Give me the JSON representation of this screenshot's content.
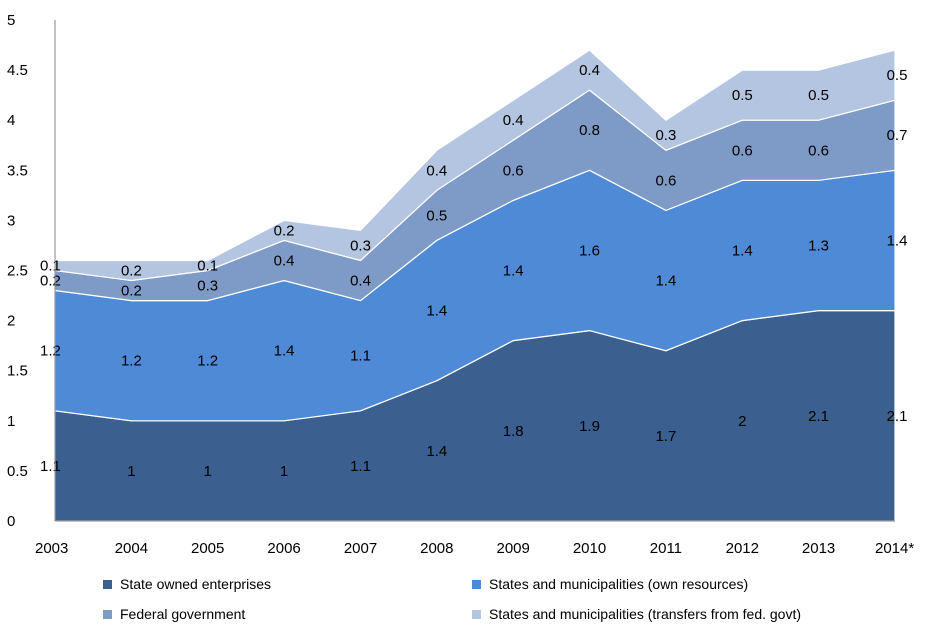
{
  "chart_data": {
    "type": "area",
    "stacked": true,
    "x": [
      "2003",
      "2004",
      "2005",
      "2006",
      "2007",
      "2008",
      "2009",
      "2010",
      "2011",
      "2012",
      "2013",
      "2014*"
    ],
    "ylim": [
      0,
      5
    ],
    "yticks": [
      "0",
      "0.5",
      "1",
      "1.5",
      "2",
      "2.5",
      "3",
      "3.5",
      "4",
      "4.5",
      "5"
    ],
    "legend_position": "bottom",
    "grid": false,
    "series": [
      {
        "name": "State owned enterprises",
        "color": "#3B5F8F",
        "values": [
          1.1,
          1,
          1,
          1,
          1.1,
          1.4,
          1.8,
          1.9,
          1.7,
          2,
          2.1,
          2.1
        ],
        "labels": [
          "1.1",
          "1",
          "1",
          "1",
          "1.1",
          "1.4",
          "1.8",
          "1.9",
          "1.7",
          "2",
          "2.1",
          "2.1"
        ]
      },
      {
        "name": "States and municipalities (own resources)",
        "color": "#4F8AD6",
        "values": [
          1.2,
          1.2,
          1.2,
          1.4,
          1.1,
          1.4,
          1.4,
          1.6,
          1.4,
          1.4,
          1.3,
          1.4
        ],
        "labels": [
          "1.2",
          "1.2",
          "1.2",
          "1.4",
          "1.1",
          "1.4",
          "1.4",
          "1.6",
          "1.4",
          "1.4",
          "1.3",
          "1.4"
        ]
      },
      {
        "name": "Federal government",
        "color": "#7E9BC8",
        "values": [
          0.2,
          0.2,
          0.3,
          0.4,
          0.4,
          0.5,
          0.6,
          0.8,
          0.6,
          0.6,
          0.6,
          0.7
        ],
        "labels": [
          "0.2",
          "0.2",
          "0.3",
          "0.4",
          "0.4",
          "0.5",
          "0.6",
          "0.8",
          "0.6",
          "0.6",
          "0.6",
          "0.7"
        ]
      },
      {
        "name": "States and municipalities (transfers from fed. govt)",
        "color": "#B4C5E1",
        "values": [
          0.1,
          0.2,
          0.1,
          0.2,
          0.3,
          0.4,
          0.4,
          0.4,
          0.3,
          0.5,
          0.5,
          0.5
        ],
        "labels": [
          "0.1",
          "0.2",
          "0.1",
          "0.2",
          "0.3",
          "0.4",
          "0.4",
          "0.4",
          "0.3",
          "0.5",
          "0.5",
          "0.5"
        ]
      }
    ]
  }
}
